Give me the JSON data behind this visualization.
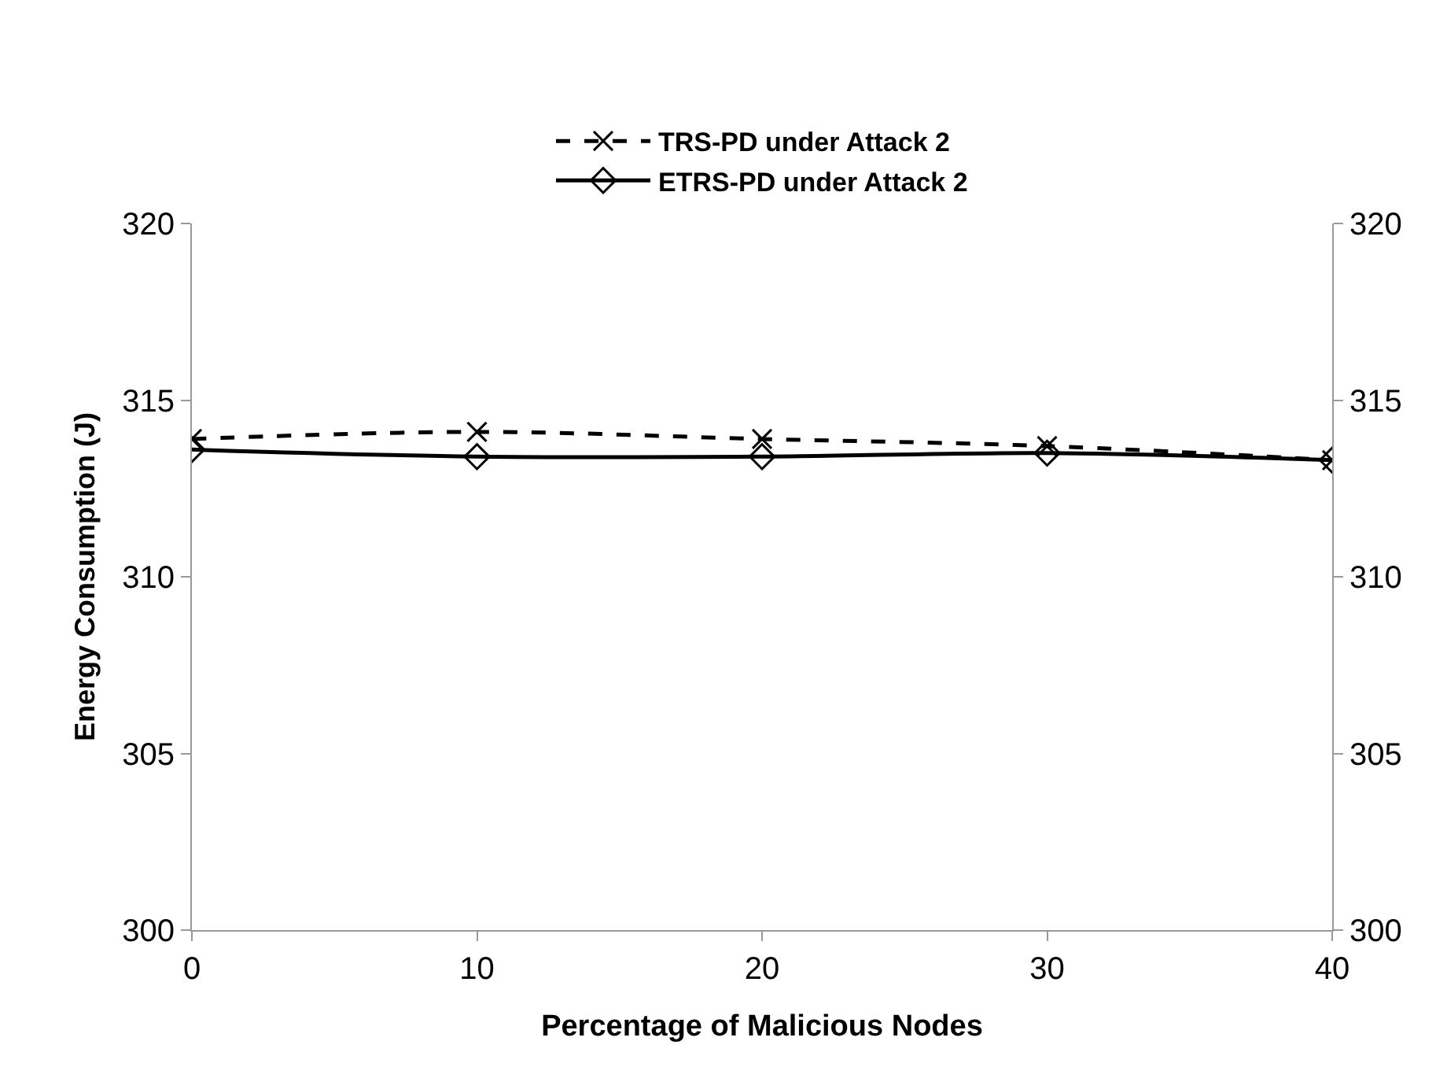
{
  "chart_data": {
    "type": "line",
    "xlabel": "Percentage of Malicious Nodes",
    "ylabel": "Energy Consumption (J)",
    "x": [
      0,
      10,
      20,
      30,
      40
    ],
    "series": [
      {
        "name": "TRS-PD under Attack 2",
        "color": "#000000",
        "values": [
          313.9,
          314.1,
          313.9,
          313.7,
          313.3
        ],
        "line_style": "dashed",
        "marker": "cross"
      },
      {
        "name": "ETRS-PD under Attack 2",
        "color": "#000000",
        "values": [
          313.6,
          313.4,
          313.4,
          313.5,
          313.3
        ],
        "line_style": "solid",
        "marker": "diamond"
      }
    ],
    "xlim": [
      0,
      40
    ],
    "xticks": [
      0,
      10,
      20,
      30,
      40
    ],
    "ylim": [
      300,
      320
    ],
    "yticks": [
      300,
      305,
      310,
      315,
      320
    ],
    "y2lim": [
      300,
      320
    ],
    "y2ticks": [
      300,
      305,
      310,
      315,
      320
    ],
    "grid": false,
    "legend": "top"
  }
}
